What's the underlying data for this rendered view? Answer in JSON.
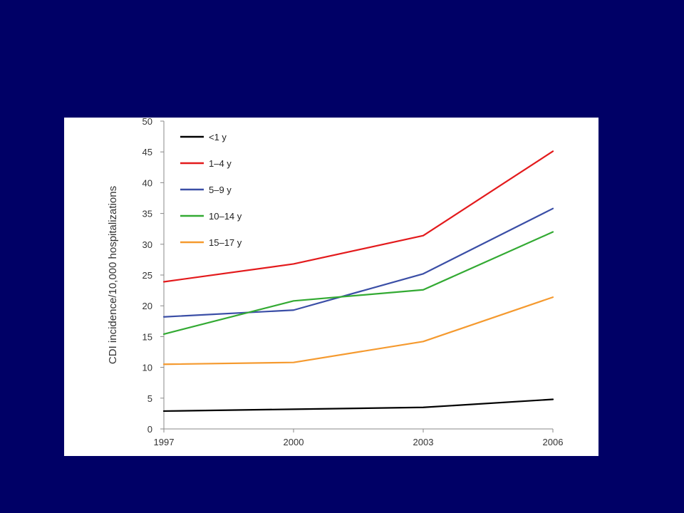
{
  "chart_data": {
    "type": "line",
    "title": "",
    "xlabel": "",
    "ylabel": "CDI incidence/10,000 hospitalizations",
    "x": [
      1997,
      2000,
      2003,
      2006
    ],
    "x_tick_labels": [
      "1997",
      "2000",
      "2003",
      "2006"
    ],
    "ylim": [
      0,
      50
    ],
    "y_ticks": [
      0,
      5,
      10,
      15,
      20,
      25,
      30,
      35,
      40,
      45,
      50
    ],
    "grid": false,
    "legend_position": "top-left",
    "series": [
      {
        "name": "<1 y",
        "color": "#000000",
        "values": [
          2.9,
          3.2,
          3.5,
          4.8
        ]
      },
      {
        "name": "1–4 y",
        "color": "#e31a1c",
        "values": [
          23.9,
          26.8,
          31.4,
          45.1
        ]
      },
      {
        "name": "5–9 y",
        "color": "#3a4ea6",
        "values": [
          18.2,
          19.3,
          25.2,
          35.8
        ]
      },
      {
        "name": "10–14 y",
        "color": "#33aa33",
        "values": [
          15.4,
          20.8,
          22.6,
          32.0
        ]
      },
      {
        "name": "15–17 y",
        "color": "#f59a2f",
        "values": [
          10.5,
          10.8,
          14.2,
          21.4
        ]
      }
    ]
  }
}
